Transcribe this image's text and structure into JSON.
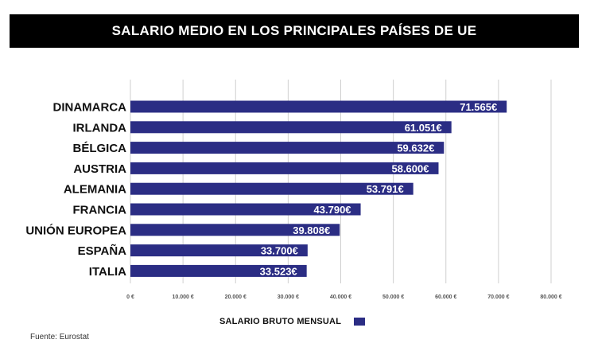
{
  "chart_data": {
    "type": "bar",
    "orientation": "horizontal",
    "title": "SALARIO MEDIO EN LOS PRINCIPALES PAÍSES DE UE",
    "categories": [
      "DINAMARCA",
      "IRLANDA",
      "BÉLGICA",
      "AUSTRIA",
      "ALEMANIA",
      "FRANCIA",
      "UNIÓN EUROPEA",
      "ESPAÑA",
      "ITALIA"
    ],
    "values": [
      71565,
      61051,
      59632,
      58600,
      53791,
      43790,
      39808,
      33700,
      33523
    ],
    "value_labels": [
      "71.565€",
      "61.051€",
      "59.632€",
      "58.600€",
      "53.791€",
      "43.790€",
      "39.808€",
      "33.700€",
      "33.523€"
    ],
    "xlim": [
      0,
      80000
    ],
    "xticks": [
      0,
      10000,
      20000,
      30000,
      40000,
      50000,
      60000,
      70000,
      80000
    ],
    "xtick_labels": [
      "0 €",
      "10.000 €",
      "20.000 €",
      "30.000 €",
      "40.000 €",
      "50.000 €",
      "60.000 €",
      "70.000 €",
      "80.000 €"
    ],
    "legend": "SALARIO BRUTO MENSUAL",
    "legend_position": "bottom",
    "grid": true,
    "bar_color": "#2b2d84",
    "grid_color": "#cfcfcf"
  },
  "source": "Fuente: Eurostat"
}
